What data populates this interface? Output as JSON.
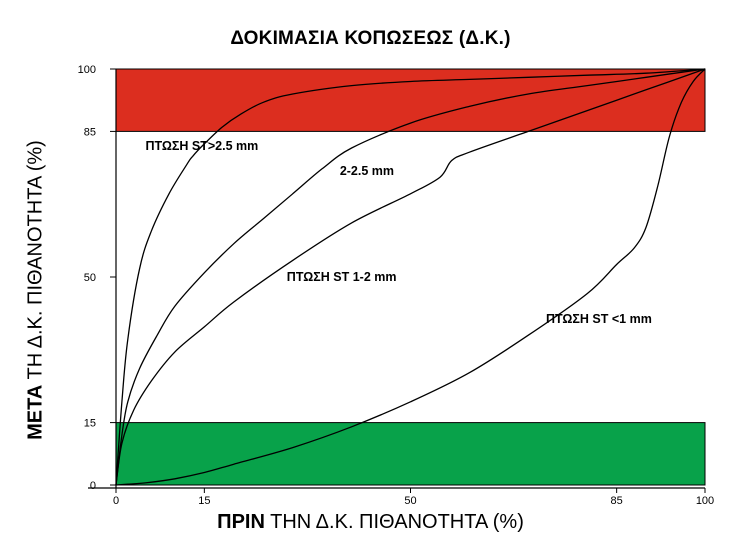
{
  "chart_data": {
    "type": "line",
    "title": "ΔΟΚΙΜΑΣΙΑ ΚΟΠΩΣΕΩΣ (Δ.Κ.)",
    "xlabel_bold": "ΠΡΙΝ",
    "xlabel_rest": "ΤΗΝ Δ.Κ. ΠΙΘΑΝΟΤΗΤΑ (%)",
    "ylabel_bold": "ΜΕΤΑ",
    "ylabel_rest": "ΤΗ Δ.Κ. ΠΙΘΑΝΟΤΗΤΑ (%)",
    "xlim": [
      0,
      100
    ],
    "ylim": [
      0,
      100
    ],
    "xticks": [
      0,
      15,
      50,
      85,
      100
    ],
    "yticks": [
      0,
      15,
      50,
      85,
      100
    ],
    "grid": false,
    "bands": [
      {
        "from": 85,
        "to": 100,
        "color": "#dc2e1f"
      },
      {
        "from": 0,
        "to": 15,
        "color": "#08a24a"
      }
    ],
    "series": [
      {
        "name": "ΠΤΩΣΗ ST>2.5 mm",
        "x": [
          0,
          1,
          2,
          4,
          6,
          9,
          12,
          13,
          15,
          18,
          21,
          25,
          30,
          40,
          50,
          60,
          70,
          80,
          90,
          100
        ],
        "y": [
          0,
          20,
          35,
          52,
          61,
          70,
          77,
          79,
          82,
          86,
          89,
          92,
          94,
          96,
          97,
          97.5,
          98,
          98.5,
          99,
          100
        ]
      },
      {
        "name": "2-2.5 mm",
        "x": [
          0,
          1,
          2,
          4,
          7,
          10,
          15,
          20,
          25,
          30,
          35,
          40,
          50,
          60,
          70,
          80,
          90,
          100
        ],
        "y": [
          0,
          12,
          20,
          28,
          36,
          43,
          51,
          58,
          64,
          70,
          76,
          81,
          87,
          91,
          94,
          96,
          98,
          100
        ]
      },
      {
        "name": "ΠΤΩΣΗ ST 1-2 mm",
        "x": [
          0,
          1,
          3,
          6,
          10,
          15,
          20,
          30,
          40,
          50,
          55,
          57,
          60,
          70,
          80,
          90,
          100
        ],
        "y": [
          0,
          10,
          18,
          25,
          32,
          38,
          44,
          54,
          63,
          70,
          74,
          78,
          80,
          85,
          90,
          95,
          100
        ]
      },
      {
        "name": "ΠΤΩΣΗ ST <1 mm",
        "x": [
          0,
          2,
          5,
          10,
          15,
          20,
          30,
          40,
          50,
          60,
          70,
          80,
          85,
          88,
          90,
          92,
          94,
          96,
          98,
          100
        ],
        "y": [
          0,
          0.2,
          0.5,
          1.5,
          3,
          5,
          9,
          14,
          20,
          27,
          36,
          46,
          53,
          57,
          62,
          72,
          84,
          92,
          97,
          100
        ]
      }
    ],
    "annotations": [
      {
        "text": "ΠΤΩΣΗ ST>2.5 mm",
        "x": 5,
        "y": 80.5
      },
      {
        "text": "2-2.5 mm",
        "x": 38,
        "y": 74.5
      },
      {
        "text": "ΠΤΩΣΗ ST 1-2 mm",
        "x": 29,
        "y": 49
      },
      {
        "text": "ΠΤΩΣΗ ST <1 mm",
        "x": 73,
        "y": 39
      }
    ],
    "line_color": "#000000"
  }
}
